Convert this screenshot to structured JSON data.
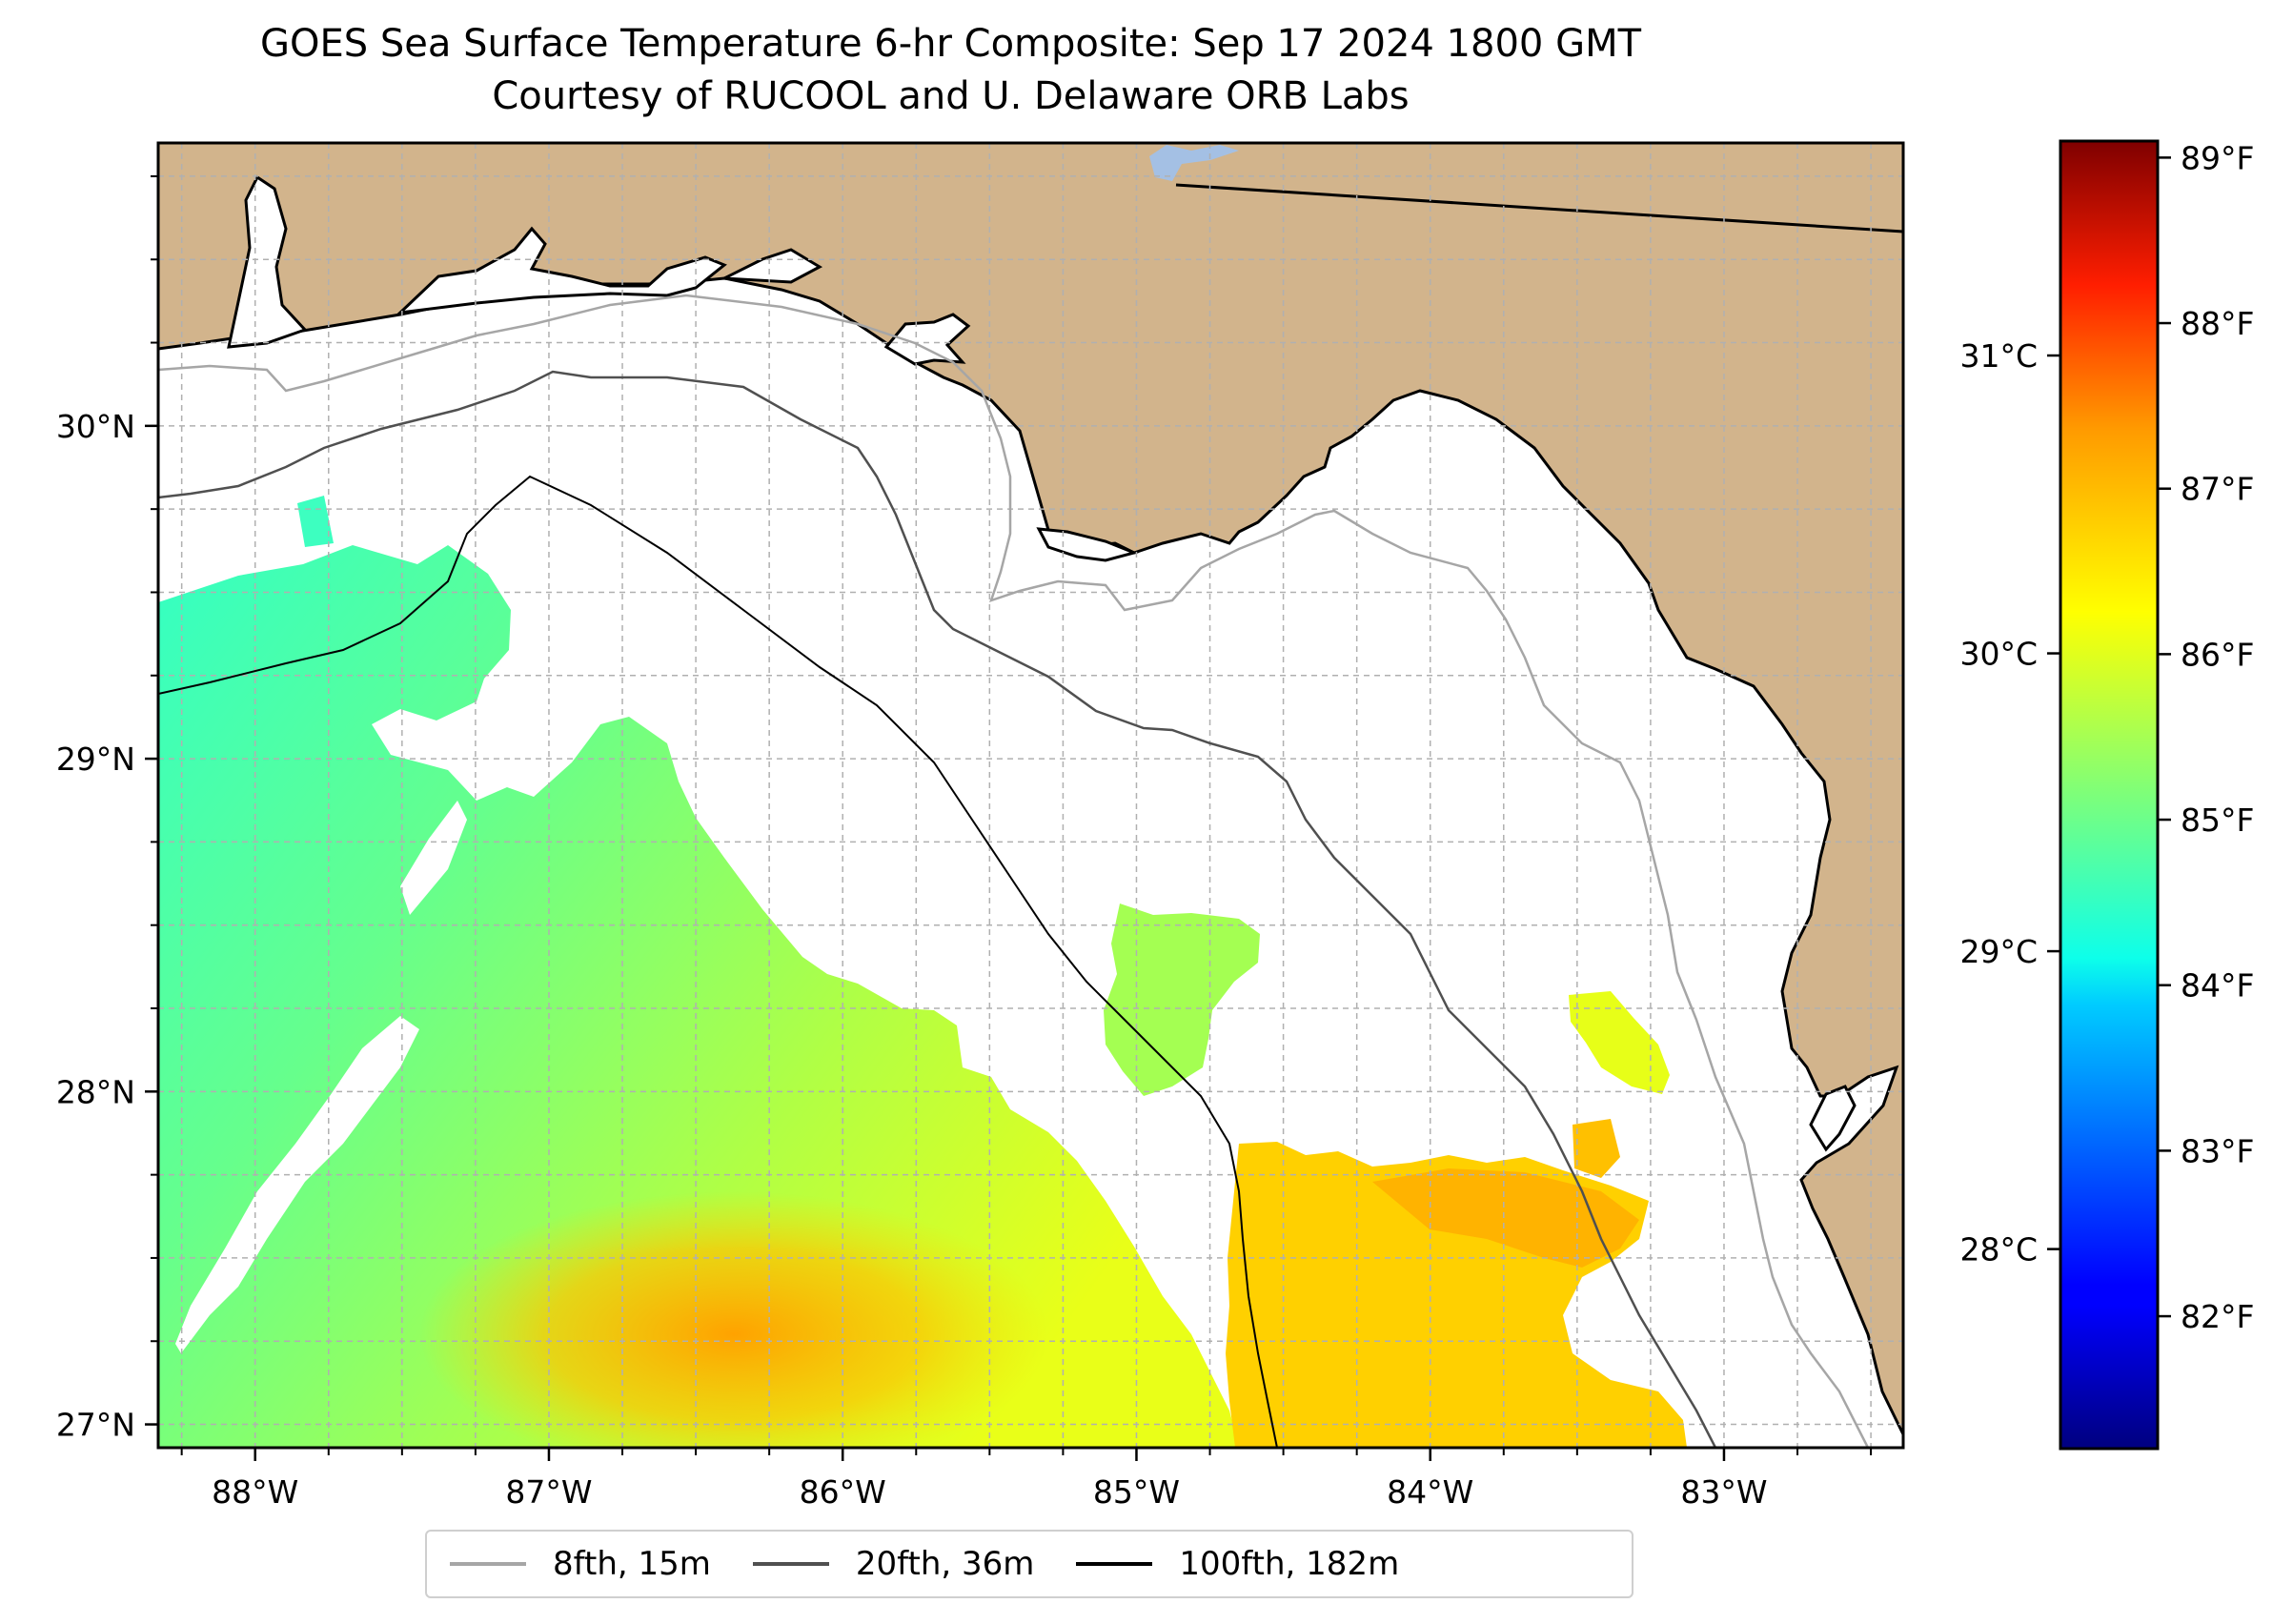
{
  "title": "GOES Sea Surface Temperature 6-hr Composite: Sep 17 2024 1800 GMT",
  "subtitle": "Courtesy of RUCOOL and U. Delaware ORB Labs",
  "map": {
    "lon_range": [
      -88.33,
      -82.39
    ],
    "lat_range": [
      26.93,
      30.85
    ],
    "land_color": "#d2b48c",
    "water_color": "#ffffff",
    "grid": true,
    "lon_ticks": [
      {
        "value": -88,
        "label": "88°W"
      },
      {
        "value": -87,
        "label": "87°W"
      },
      {
        "value": -86,
        "label": "86°W"
      },
      {
        "value": -85,
        "label": "85°W"
      },
      {
        "value": -84,
        "label": "84°W"
      },
      {
        "value": -83,
        "label": "83°W"
      }
    ],
    "lat_ticks": [
      {
        "value": 27,
        "label": "27°N"
      },
      {
        "value": 28,
        "label": "28°N"
      },
      {
        "value": 29,
        "label": "29°N"
      },
      {
        "value": 30,
        "label": "30°N"
      }
    ]
  },
  "colorbar": {
    "colormap": "jet",
    "f_range": [
      81.2,
      89.1
    ],
    "c_range": [
      27.33,
      31.72
    ],
    "f_ticks": [
      {
        "value": 82,
        "label": "82°F"
      },
      {
        "value": 83,
        "label": "83°F"
      },
      {
        "value": 84,
        "label": "84°F"
      },
      {
        "value": 85,
        "label": "85°F"
      },
      {
        "value": 86,
        "label": "86°F"
      },
      {
        "value": 87,
        "label": "87°F"
      },
      {
        "value": 88,
        "label": "88°F"
      },
      {
        "value": 89,
        "label": "89°F"
      }
    ],
    "c_ticks": [
      {
        "value": 28,
        "label": "28°C"
      },
      {
        "value": 29,
        "label": "29°C"
      },
      {
        "value": 30,
        "label": "30°C"
      },
      {
        "value": 31,
        "label": "31°C"
      }
    ]
  },
  "legend": [
    {
      "label": "8fth, 15m",
      "color": "#a6a6a6"
    },
    {
      "label": "20fth, 36m",
      "color": "#505050"
    },
    {
      "label": "100fth, 182m",
      "color": "#000000"
    }
  ]
}
